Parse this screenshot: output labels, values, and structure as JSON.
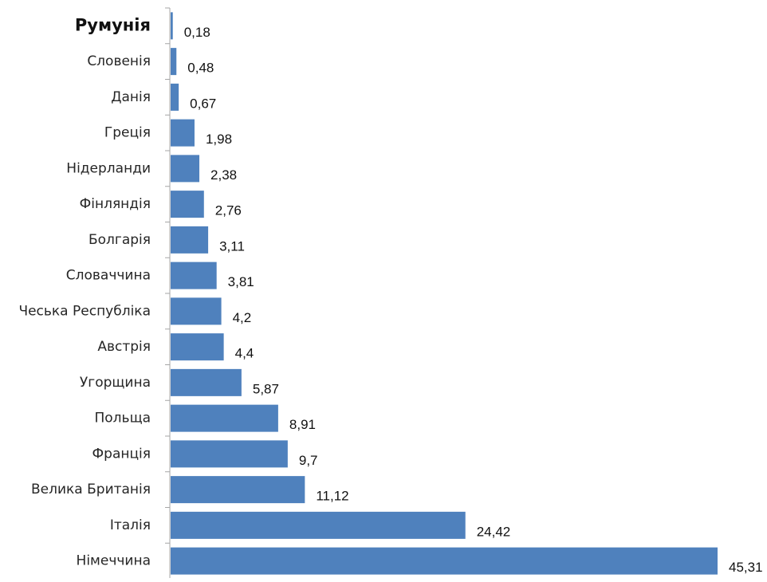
{
  "chart_data": {
    "type": "bar",
    "orientation": "horizontal",
    "categories": [
      "Румунія",
      "Словенія",
      "Данія",
      "Греція",
      "Нідерланди",
      "Фінляндія",
      "Болгарія",
      "Словаччина",
      "Чеська Республіка",
      "Австрія",
      "Угорщина",
      "Польща",
      "Франція",
      "Велика Британія",
      "Італія",
      "Німеччина"
    ],
    "values": [
      0.18,
      0.48,
      0.67,
      1.98,
      2.38,
      2.76,
      3.11,
      3.81,
      4.2,
      4.4,
      5.87,
      8.91,
      9.7,
      11.12,
      24.42,
      45.31
    ],
    "value_labels": [
      "0,18",
      "0,48",
      "0,67",
      "1,98",
      "2,38",
      "2,76",
      "3,11",
      "3,81",
      "4,2",
      "4,4",
      "5,87",
      "8,91",
      "9,7",
      "11,12",
      "24,42",
      "45,31"
    ],
    "highlighted_category": "Румунія",
    "xlim": [
      0,
      45.31
    ],
    "grid": false,
    "legend": "none",
    "colors": {
      "bar": "#4f81bd",
      "axis": "#a6a6a6"
    }
  }
}
